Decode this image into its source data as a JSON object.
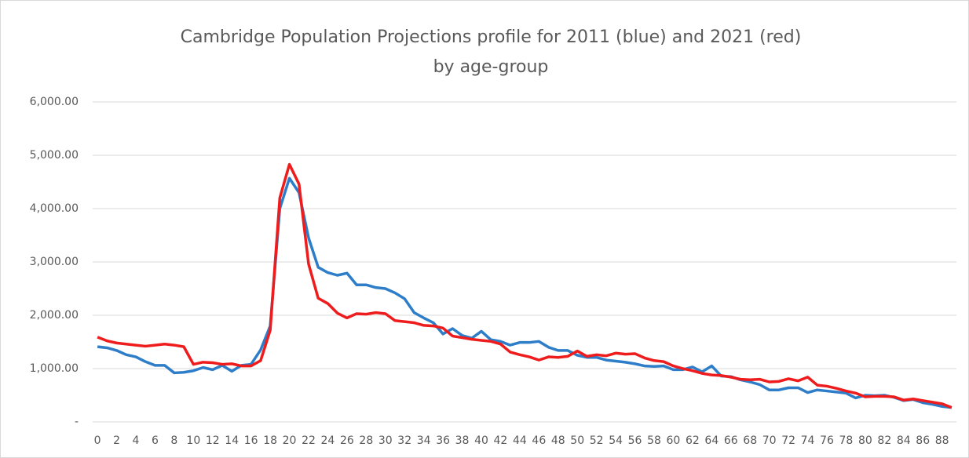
{
  "chart_data": {
    "type": "line",
    "title": [
      "Cambridge Population Projections profile for 2011 (blue) and 2021 (red)",
      "by age-group"
    ],
    "categories": [
      "0",
      null,
      "2",
      null,
      "4",
      null,
      "6",
      null,
      "8",
      null,
      "10",
      null,
      "12",
      null,
      "14",
      null,
      "16",
      null,
      "18",
      null,
      "20",
      null,
      "22",
      null,
      "24",
      null,
      "26",
      null,
      "28",
      null,
      "30",
      null,
      "32",
      null,
      "34",
      null,
      "36",
      null,
      "38",
      null,
      "40",
      null,
      "42",
      null,
      "44",
      null,
      "46",
      null,
      "48",
      null,
      "50",
      null,
      "52",
      null,
      "54",
      null,
      "56",
      null,
      "58",
      null,
      "60",
      null,
      "62",
      null,
      "64",
      null,
      "66",
      null,
      "68",
      null,
      "70",
      null,
      "72",
      null,
      "74",
      null,
      "76",
      null,
      "78",
      null,
      "80",
      null,
      "82",
      null,
      "84",
      null,
      "86",
      null,
      "88",
      null
    ],
    "series": [
      {
        "color": "#2e7dc8",
        "values": [
          1410,
          1390,
          1340,
          1260,
          1220,
          1130,
          1060,
          1060,
          920,
          930,
          960,
          1020,
          980,
          1060,
          950,
          1060,
          1080,
          1350,
          1800,
          4000,
          4570,
          4300,
          3450,
          2900,
          2800,
          2750,
          2790,
          2570,
          2570,
          2520,
          2500,
          2420,
          2310,
          2050,
          1950,
          1860,
          1650,
          1750,
          1620,
          1570,
          1700,
          1540,
          1510,
          1440,
          1490,
          1490,
          1510,
          1400,
          1340,
          1340,
          1250,
          1210,
          1210,
          1160,
          1140,
          1120,
          1090,
          1050,
          1040,
          1050,
          980,
          980,
          1030,
          940,
          1050,
          860,
          850,
          790,
          750,
          700,
          600,
          600,
          640,
          640,
          550,
          600,
          580,
          560,
          540,
          450,
          500,
          490,
          500,
          460,
          400,
          420,
          360,
          330,
          290,
          270
        ]
      },
      {
        "color": "#ee1c1c",
        "values": [
          1590,
          1520,
          1480,
          1460,
          1440,
          1420,
          1440,
          1460,
          1440,
          1410,
          1080,
          1120,
          1110,
          1080,
          1090,
          1050,
          1050,
          1150,
          1720,
          4200,
          4830,
          4460,
          2960,
          2320,
          2220,
          2040,
          1950,
          2030,
          2020,
          2050,
          2030,
          1900,
          1880,
          1860,
          1810,
          1800,
          1760,
          1610,
          1580,
          1550,
          1530,
          1510,
          1460,
          1310,
          1260,
          1220,
          1160,
          1220,
          1210,
          1230,
          1330,
          1230,
          1260,
          1240,
          1290,
          1270,
          1280,
          1200,
          1150,
          1130,
          1050,
          1000,
          960,
          910,
          880,
          870,
          840,
          800,
          790,
          800,
          750,
          760,
          810,
          770,
          840,
          690,
          670,
          630,
          580,
          540,
          470,
          480,
          480,
          470,
          410,
          430,
          400,
          370,
          340,
          270
        ]
      }
    ],
    "ylim": [
      0,
      6000
    ],
    "yticks": [
      {
        "value": 0,
        "label": "-"
      },
      {
        "value": 1000,
        "label": "1,000.00"
      },
      {
        "value": 2000,
        "label": "2,000.00"
      },
      {
        "value": 3000,
        "label": "3,000.00"
      },
      {
        "value": 4000,
        "label": "4,000.00"
      },
      {
        "value": 5000,
        "label": "5,000.00"
      },
      {
        "value": 6000,
        "label": "6,000.00"
      }
    ],
    "grid": true
  }
}
